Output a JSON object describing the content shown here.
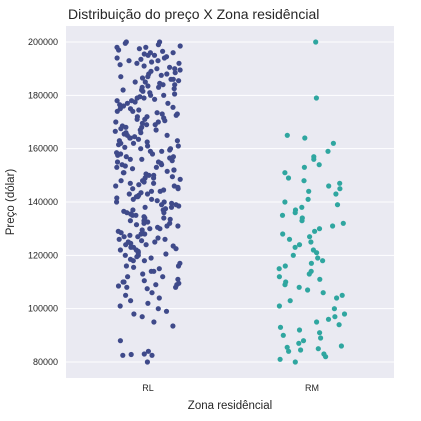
{
  "chart_data": {
    "type": "scatter",
    "subtype": "strip",
    "title": "Distribuição do preço X Zona residêncial",
    "xlabel": "Zona residêncial",
    "ylabel": "Preço (dólar)",
    "categories": [
      "RL",
      "RM"
    ],
    "ylim": [
      74000,
      206000
    ],
    "yticks": [
      80000,
      100000,
      120000,
      140000,
      160000,
      180000,
      200000
    ],
    "ytick_labels": [
      "80000",
      "100000",
      "120000",
      "140000",
      "160000",
      "180000",
      "200000"
    ],
    "grid": true,
    "background": "#eaeaf2",
    "series": [
      {
        "category": "RL",
        "color": "#3f4a8a",
        "values": [
          80000,
          82500,
          82500,
          82800,
          83000,
          84000,
          88000,
          93500,
          95000,
          97000,
          98000,
          99000,
          100000,
          101000,
          102000,
          103000,
          104000,
          105000,
          106000,
          107500,
          108000,
          108500,
          109000,
          109500,
          110000,
          110500,
          111000,
          112000,
          113000,
          114000,
          115000,
          115500,
          116000,
          117000,
          118000,
          118500,
          119000,
          119500,
          120000,
          120500,
          121000,
          121500,
          122000,
          122500,
          123000,
          123500,
          124000,
          124500,
          125000,
          125500,
          126000,
          126500,
          127000,
          127500,
          128000,
          128500,
          129000,
          129500,
          130000,
          130500,
          131000,
          131500,
          132000,
          132500,
          133000,
          133500,
          134000,
          134500,
          135000,
          135500,
          136000,
          136500,
          137000,
          137500,
          138000,
          138500,
          139000,
          139500,
          140000,
          140500,
          141000,
          141500,
          142000,
          142500,
          143000,
          143500,
          144000,
          144500,
          145000,
          145500,
          146000,
          146500,
          147000,
          147500,
          148000,
          148500,
          149000,
          149500,
          150000,
          150500,
          151000,
          151500,
          152000,
          152500,
          153000,
          153500,
          154000,
          154500,
          155000,
          155500,
          156000,
          156500,
          157000,
          157500,
          158000,
          158500,
          159000,
          159500,
          160000,
          160500,
          161000,
          161500,
          162000,
          162500,
          163000,
          163500,
          164000,
          164500,
          165000,
          165500,
          166000,
          166500,
          167000,
          167500,
          168000,
          168500,
          169000,
          169500,
          170000,
          170500,
          171000,
          171500,
          172000,
          172500,
          173000,
          173500,
          174000,
          174500,
          175000,
          175500,
          176000,
          176500,
          177000,
          177500,
          178000,
          178500,
          179000,
          179500,
          180000,
          180500,
          181000,
          181500,
          182000,
          182500,
          183000,
          183500,
          184000,
          184500,
          185000,
          185500,
          186000,
          186500,
          187000,
          187500,
          188000,
          188500,
          189000,
          189500,
          190000,
          190500,
          191000,
          191500,
          192000,
          192500,
          193000,
          193500,
          194000,
          194500,
          195000,
          195500,
          196000,
          196500,
          197000,
          197500,
          198000,
          198500,
          199000,
          199500,
          200000,
          200000,
          125000,
          130000,
          135000,
          140000,
          145000,
          150000,
          155000,
          160000,
          165000,
          170000,
          175000,
          180000,
          185000,
          190000,
          195000,
          128000,
          132000,
          136000,
          142000,
          148000,
          152000,
          158000,
          162000,
          168000,
          172000,
          178000,
          182000,
          188000,
          192000,
          198000,
          126000,
          134000,
          138000,
          144000,
          146000,
          154000,
          156000,
          164000,
          166000,
          174000,
          176000,
          184000,
          186000,
          194000,
          196000,
          123000,
          127000,
          133000,
          137000,
          143000,
          147000,
          153000,
          157000,
          163000,
          167000,
          173000,
          177000,
          183000,
          187000,
          193000,
          110000,
          112000,
          114000,
          116000,
          118000,
          120000,
          122000,
          124000,
          108000,
          109000,
          131000,
          139000,
          141000,
          149000,
          151000,
          159000,
          161000,
          169000,
          171000,
          179000
        ]
      },
      {
        "category": "RM",
        "color": "#2fa6a0",
        "values": [
          200000,
          179000,
          165000,
          164000,
          162000,
          159000,
          157000,
          156000,
          154000,
          153000,
          151000,
          149000,
          148000,
          147000,
          146000,
          145000,
          144000,
          143000,
          141000,
          140000,
          139000,
          138000,
          137000,
          136000,
          135000,
          134000,
          133000,
          132000,
          131000,
          130000,
          129000,
          128000,
          127000,
          126000,
          125000,
          124000,
          123000,
          122000,
          121000,
          120000,
          119000,
          118000,
          117000,
          116000,
          115000,
          114000,
          113000,
          112000,
          111000,
          110000,
          109000,
          108000,
          107000,
          106000,
          105000,
          104000,
          103000,
          101000,
          100000,
          98000,
          97000,
          96000,
          95000,
          94000,
          93000,
          92000,
          91000,
          90000,
          89000,
          88000,
          87000,
          86000,
          85000,
          84000,
          83000,
          82000,
          81000,
          80000,
          85500,
          84500
        ]
      }
    ]
  }
}
